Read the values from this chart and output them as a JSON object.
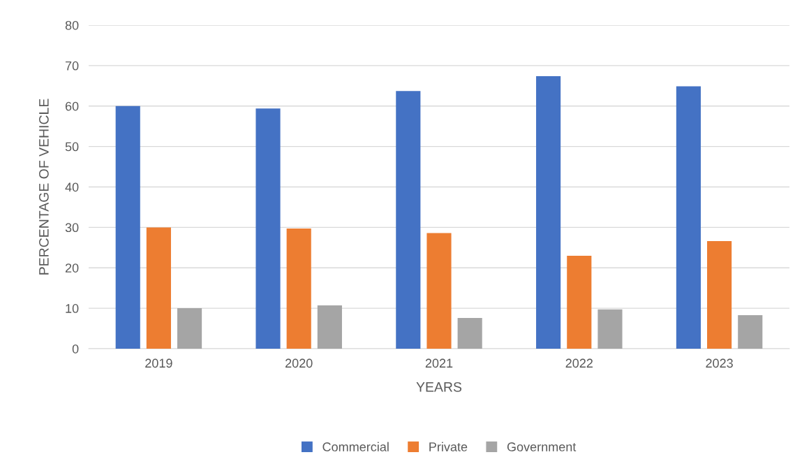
{
  "chart_data": {
    "type": "bar",
    "xlabel": "YEARS",
    "ylabel": "PERCENTAGE OF VEHICLE",
    "categories": [
      "2019",
      "2020",
      "2021",
      "2022",
      "2023"
    ],
    "series": [
      {
        "name": "Commercial",
        "color": "#4472c4",
        "values": [
          60,
          59.4,
          63.7,
          67.4,
          64.9
        ]
      },
      {
        "name": "Private",
        "color": "#ed7d31",
        "values": [
          30,
          29.7,
          28.6,
          23,
          26.6
        ]
      },
      {
        "name": "Government",
        "color": "#a5a5a5",
        "values": [
          10,
          10.7,
          7.6,
          9.7,
          8.3
        ]
      }
    ],
    "ylim": [
      0,
      80
    ],
    "yticks": [
      0,
      10,
      20,
      30,
      40,
      50,
      60,
      70,
      80
    ],
    "grid": "y",
    "legend": "bottom"
  }
}
